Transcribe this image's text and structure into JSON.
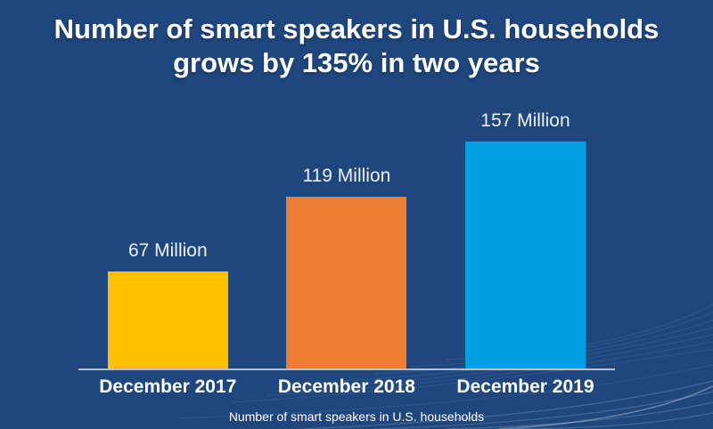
{
  "title": {
    "line1": "Number of smart speakers in U.S. households",
    "line2": "grows by 135% in two years"
  },
  "chart_data": {
    "type": "bar",
    "title": "Number of smart speakers in U.S. households grows by 135% in two years",
    "categories": [
      "December 2017",
      "December 2018",
      "December 2019"
    ],
    "values": [
      67,
      119,
      157
    ],
    "unit": "Million",
    "value_labels": [
      "67 Million",
      "119 Million",
      "157 Million"
    ],
    "bar_colors": [
      "#FFC000",
      "#ED7D31",
      "#00A0E3"
    ],
    "xlabel": "Number of smart speakers in U.S. households",
    "ylabel": "",
    "ylim": [
      0,
      160
    ],
    "grid": false,
    "legend": false,
    "growth_annotation": "135% in two years"
  },
  "caption": "Number of smart speakers in U.S. households",
  "colors": {
    "background": "#1F477E",
    "axis_line": "#BFBFBF",
    "title_text": "#FFFFFF",
    "value_label_text": "#EDF1F8",
    "category_label_text": "#FFFFFF"
  }
}
